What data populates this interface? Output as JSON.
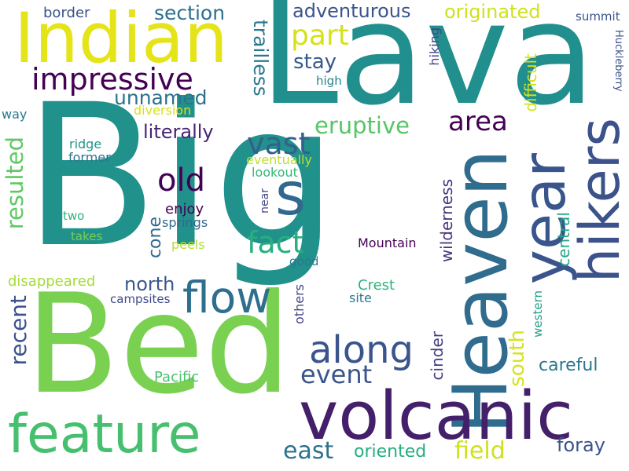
{
  "words": [
    {
      "id": "big",
      "text": "Big",
      "color": "#21918c"
    },
    {
      "id": "lava",
      "text": "Lava",
      "color": "#218f8d"
    },
    {
      "id": "bed",
      "text": "Bed",
      "color": "#7ad151"
    },
    {
      "id": "indian",
      "text": "Indian",
      "color": "#e4e419"
    },
    {
      "id": "heaven",
      "text": "Heaven",
      "color": "#2f6c8e"
    },
    {
      "id": "volcanic",
      "text": "volcanic",
      "color": "#44206a"
    },
    {
      "id": "feature",
      "text": "feature",
      "color": "#46c06f"
    },
    {
      "id": "year",
      "text": "year",
      "color": "#39558c"
    },
    {
      "id": "hikers",
      "text": "hikers",
      "color": "#3b528b"
    },
    {
      "id": "s",
      "text": "s",
      "color": "#31688e"
    },
    {
      "id": "flow",
      "text": "flow",
      "color": "#2e6f8e"
    },
    {
      "id": "along",
      "text": "along",
      "color": "#3a548c"
    },
    {
      "id": "impressive",
      "text": "impressive",
      "color": "#440154"
    },
    {
      "id": "adventurous",
      "text": "adventurous",
      "color": "#3a548c"
    },
    {
      "id": "originated",
      "text": "originated",
      "color": "#d0e11c"
    },
    {
      "id": "section",
      "text": "section",
      "color": "#2c718e"
    },
    {
      "id": "border",
      "text": "border",
      "color": "#3b528b"
    },
    {
      "id": "part",
      "text": "part",
      "color": "#d5e21a"
    },
    {
      "id": "stay",
      "text": "stay",
      "color": "#38598c"
    },
    {
      "id": "trailless",
      "text": "trailless",
      "color": "#2a788e"
    },
    {
      "id": "unnamed",
      "text": "unnamed",
      "color": "#2c728e"
    },
    {
      "id": "eruptive",
      "text": "eruptive",
      "color": "#56c667"
    },
    {
      "id": "area",
      "text": "area",
      "color": "#440154"
    },
    {
      "id": "vast",
      "text": "vast",
      "color": "#34608d"
    },
    {
      "id": "fact",
      "text": "fact",
      "color": "#28ae80"
    },
    {
      "id": "old",
      "text": "old",
      "color": "#440154"
    },
    {
      "id": "literally",
      "text": "literally",
      "color": "#482475"
    },
    {
      "id": "diversion",
      "text": "diversion",
      "color": "#d8e219"
    },
    {
      "id": "way",
      "text": "way",
      "color": "#2a788e"
    },
    {
      "id": "ridge",
      "text": "ridge",
      "color": "#1f968b"
    },
    {
      "id": "former",
      "text": "former",
      "color": "#2c728e"
    },
    {
      "id": "eventually",
      "text": "eventually",
      "color": "#bddf26"
    },
    {
      "id": "lookout",
      "text": "lookout",
      "color": "#35b779"
    },
    {
      "id": "resulted",
      "text": "resulted",
      "color": "#5ec962"
    },
    {
      "id": "two",
      "text": "two",
      "color": "#2db27d"
    },
    {
      "id": "takes",
      "text": "takes",
      "color": "#7ad151"
    },
    {
      "id": "enjoy",
      "text": "enjoy",
      "color": "#440154"
    },
    {
      "id": "springs",
      "text": "springs",
      "color": "#31688e"
    },
    {
      "id": "cone",
      "text": "cone",
      "color": "#31688e"
    },
    {
      "id": "peels",
      "text": "peels",
      "color": "#b5de2b"
    },
    {
      "id": "near",
      "text": "near",
      "color": "#414487"
    },
    {
      "id": "good",
      "text": "good",
      "color": "#2a788e"
    },
    {
      "id": "mountain",
      "text": "Mountain",
      "color": "#440154"
    },
    {
      "id": "north",
      "text": "north",
      "color": "#38598c"
    },
    {
      "id": "disappeared",
      "text": "disappeared",
      "color": "#a5db36"
    },
    {
      "id": "campsites",
      "text": "campsites",
      "color": "#3e4989"
    },
    {
      "id": "recent",
      "text": "recent",
      "color": "#3b528b"
    },
    {
      "id": "others",
      "text": "others",
      "color": "#414487"
    },
    {
      "id": "crest",
      "text": "Crest",
      "color": "#2db27d"
    },
    {
      "id": "site",
      "text": "site",
      "color": "#2a788e"
    },
    {
      "id": "event",
      "text": "event",
      "color": "#39568c"
    },
    {
      "id": "pacific",
      "text": "Pacific",
      "color": "#4ac16d"
    },
    {
      "id": "cinder",
      "text": "cinder",
      "color": "#433e85"
    },
    {
      "id": "south",
      "text": "south",
      "color": "#d8e219"
    },
    {
      "id": "careful",
      "text": "careful",
      "color": "#2a788e"
    },
    {
      "id": "western",
      "text": "western",
      "color": "#1f9f88"
    },
    {
      "id": "central",
      "text": "central",
      "color": "#22a884"
    },
    {
      "id": "wilderness",
      "text": "wilderness",
      "color": "#46337f"
    },
    {
      "id": "difficult",
      "text": "difficult",
      "color": "#d2e21b"
    },
    {
      "id": "hiking",
      "text": "hiking",
      "color": "#414487"
    },
    {
      "id": "high",
      "text": "high",
      "color": "#26828e"
    },
    {
      "id": "summit",
      "text": "summit",
      "color": "#39558c"
    },
    {
      "id": "huckleberry",
      "text": "Huckleberry",
      "color": "#3b528b"
    },
    {
      "id": "east",
      "text": "east",
      "color": "#2c728e"
    },
    {
      "id": "oriented",
      "text": "oriented",
      "color": "#27ad81"
    },
    {
      "id": "field",
      "text": "field",
      "color": "#d0e11c"
    },
    {
      "id": "foray",
      "text": "foray",
      "color": "#3a548c"
    }
  ]
}
